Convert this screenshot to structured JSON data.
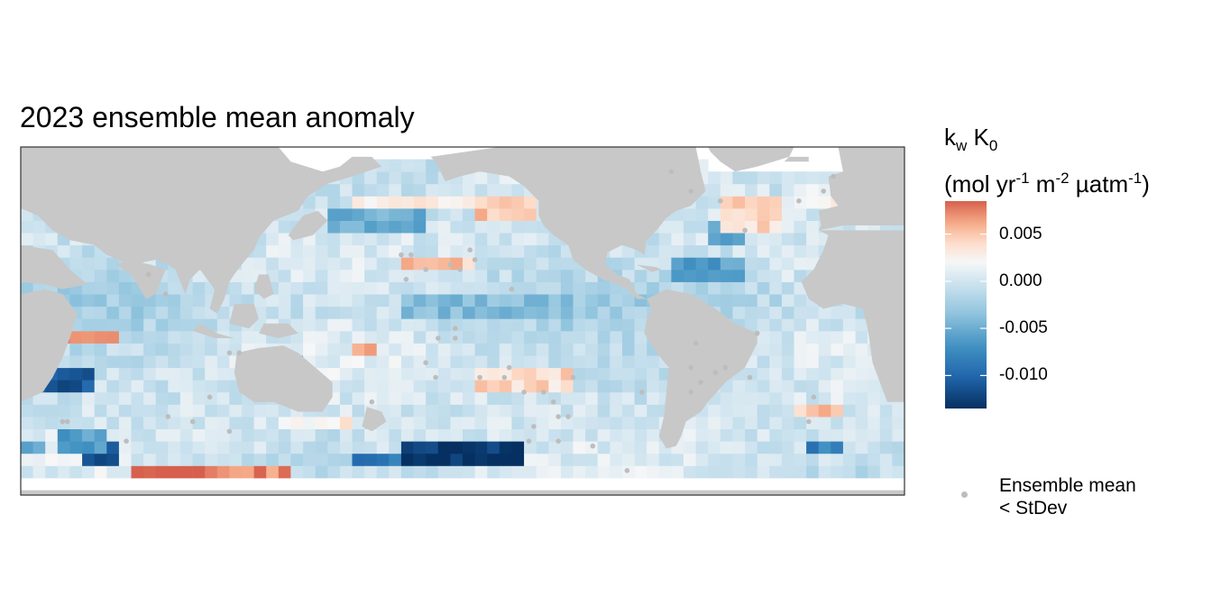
{
  "chart_data": {
    "type": "heatmap",
    "title": "2023 ensemble mean anomaly",
    "legend": {
      "title_line1_main_a": "k",
      "title_line1_sub_a": "w",
      "title_line1_main_b": " K",
      "title_line1_sub_b": "0",
      "title_line2_a": "(mol yr",
      "title_line2_sup_a": "-1",
      "title_line2_b": " m",
      "title_line2_sup_b": "-2",
      "title_line2_c": " µatm",
      "title_line2_sup_c": "-1",
      "title_line2_d": ")",
      "ticks": [
        0.005,
        0.0,
        -0.005,
        -0.01
      ],
      "tick_labels": [
        "0.005",
        "0.000",
        "-0.005",
        "-0.010"
      ],
      "range": [
        -0.0135,
        0.0085
      ],
      "colors": [
        "#053061",
        "#2166ac",
        "#4393c3",
        "#92c5de",
        "#d1e5f0",
        "#f7f7f7",
        "#fddbc7",
        "#f4a582",
        "#d6604d"
      ],
      "placement": "right",
      "stipple_label": "Ensemble mean\n< StDev"
    },
    "grid": false,
    "land_color": "#c8c8c8",
    "stipple_color": "#bdbdbd",
    "anomaly_regions": [
      {
        "lon": [
          -180,
          -130
        ],
        "lat": [
          -62,
          -52
        ],
        "value": -0.013
      },
      {
        "lon": [
          -165,
          -140
        ],
        "lat": [
          -60,
          -54
        ],
        "value": -0.0135
      },
      {
        "lon": [
          -200,
          -180
        ],
        "lat": [
          -62,
          -55
        ],
        "value": -0.009
      },
      {
        "lon": [
          -290,
          -230
        ],
        "lat": [
          -70,
          -62
        ],
        "value": 0.0082
      },
      {
        "lon": [
          -250,
          -225
        ],
        "lat": [
          -65,
          -58
        ],
        "value": 0.007
      },
      {
        "lon": [
          -310,
          -295
        ],
        "lat": [
          -60,
          -52
        ],
        "value": -0.011
      },
      {
        "lon": [
          -328,
          -305
        ],
        "lat": [
          -30,
          -20
        ],
        "value": -0.011
      },
      {
        "lon": [
          -320,
          -295
        ],
        "lat": [
          -10,
          -4
        ],
        "value": 0.0075
      },
      {
        "lon": [
          -200,
          -192
        ],
        "lat": [
          -15,
          -8
        ],
        "value": 0.006
      },
      {
        "lon": [
          -180,
          -150
        ],
        "lat": [
          18,
          24
        ],
        "value": 0.005
      },
      {
        "lon": [
          -210,
          -170
        ],
        "lat": [
          36,
          45
        ],
        "value": -0.005
      },
      {
        "lon": [
          -200,
          -140
        ],
        "lat": [
          45,
          52
        ],
        "value": 0.003
      },
      {
        "lon": [
          -150,
          -125
        ],
        "lat": [
          40,
          50
        ],
        "value": 0.005
      },
      {
        "lon": [
          -180,
          -110
        ],
        "lat": [
          2,
          10
        ],
        "value": -0.004
      },
      {
        "lon": [
          -150,
          -110
        ],
        "lat": [
          -30,
          -20
        ],
        "value": 0.004
      },
      {
        "lon": [
          -70,
          -40
        ],
        "lat": [
          15,
          25
        ],
        "value": -0.006
      },
      {
        "lon": [
          -55,
          -40
        ],
        "lat": [
          28,
          38
        ],
        "value": -0.005
      },
      {
        "lon": [
          -65,
          -60
        ],
        "lat": [
          48,
          52
        ],
        "value": -0.011
      },
      {
        "lon": [
          -50,
          -25
        ],
        "lat": [
          35,
          48
        ],
        "value": 0.004
      },
      {
        "lon": [
          -20,
          0
        ],
        "lat": [
          45,
          55
        ],
        "value": 0.002
      },
      {
        "lon": [
          -20,
          0
        ],
        "lat": [
          -40,
          -36
        ],
        "value": 0.005
      },
      {
        "lon": [
          -15,
          0
        ],
        "lat": [
          -55,
          -50
        ],
        "value": -0.008
      },
      {
        "lon": [
          -230,
          -200
        ],
        "lat": [
          -45,
          -38
        ],
        "value": 0.003
      },
      {
        "lon": [
          -240,
          -220
        ],
        "lat": [
          -25,
          -15
        ],
        "value": -0.007
      },
      {
        "lon": [
          -320,
          -300
        ],
        "lat": [
          -55,
          -45
        ],
        "value": -0.006
      },
      {
        "lon": [
          -335,
          -325
        ],
        "lat": [
          -55,
          -50
        ],
        "value": -0.006
      }
    ]
  }
}
